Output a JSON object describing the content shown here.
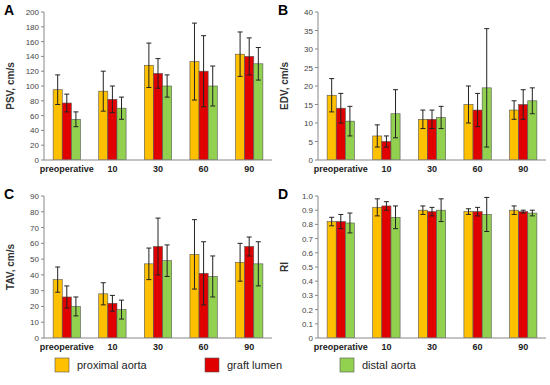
{
  "chart_data": [
    {
      "type": "bar",
      "title": "A",
      "y_label": "PSV, cm/s",
      "categories": [
        "preoperative",
        "10",
        "30",
        "60",
        "90"
      ],
      "series": [
        {
          "name": "proximal aorta",
          "color": "#ffc000",
          "values": [
            95,
            93,
            128,
            133,
            143
          ],
          "errors": [
            20,
            27,
            30,
            52,
            30
          ]
        },
        {
          "name": "graft lumen",
          "color": "#e00000",
          "values": [
            77,
            82,
            117,
            120,
            140
          ],
          "errors": [
            12,
            18,
            20,
            48,
            25
          ]
        },
        {
          "name": "distal aorta",
          "color": "#92d050",
          "values": [
            55,
            70,
            100,
            100,
            130
          ],
          "errors": [
            10,
            15,
            15,
            27,
            22
          ]
        }
      ],
      "ylim": [
        0,
        200
      ],
      "yticks": [
        0,
        20,
        40,
        60,
        80,
        100,
        120,
        140,
        160,
        180,
        200
      ],
      "grid": false,
      "legend": "bottom"
    },
    {
      "type": "bar",
      "title": "B",
      "y_label": "EDV, cm/s",
      "categories": [
        "preoperative",
        "10",
        "30",
        "60",
        "90"
      ],
      "series": [
        {
          "name": "proximal aorta",
          "color": "#ffc000",
          "values": [
            17.5,
            6.5,
            11,
            15,
            13.5
          ],
          "errors": [
            4.5,
            3,
            2.5,
            5,
            2.5
          ]
        },
        {
          "name": "graft lumen",
          "color": "#e00000",
          "values": [
            14,
            5,
            11,
            13.5,
            15
          ],
          "errors": [
            4,
            1.5,
            2.5,
            4.5,
            4
          ]
        },
        {
          "name": "distal aorta",
          "color": "#92d050",
          "values": [
            10.5,
            12.5,
            11.5,
            19.5,
            16
          ],
          "errors": [
            4,
            6.5,
            3,
            16,
            3.5
          ]
        }
      ],
      "ylim": [
        0,
        40
      ],
      "yticks": [
        0,
        5,
        10,
        15,
        20,
        25,
        30,
        35,
        40
      ],
      "grid": false,
      "legend": "bottom"
    },
    {
      "type": "bar",
      "title": "C",
      "y_label": "TAV, cm/s",
      "categories": [
        "preoperative",
        "10",
        "30",
        "60",
        "90"
      ],
      "series": [
        {
          "name": "proximal aorta",
          "color": "#ffc000",
          "values": [
            37,
            28,
            47,
            53,
            48
          ],
          "errors": [
            8,
            7,
            10,
            22,
            12
          ]
        },
        {
          "name": "graft lumen",
          "color": "#e00000",
          "values": [
            26,
            22,
            58,
            41,
            58
          ],
          "errors": [
            7,
            5,
            18,
            20,
            6
          ]
        },
        {
          "name": "distal aorta",
          "color": "#92d050",
          "values": [
            20,
            18,
            49,
            39,
            47
          ],
          "errors": [
            6,
            6,
            10,
            13,
            14
          ]
        }
      ],
      "ylim": [
        0,
        90
      ],
      "yticks": [
        0,
        10,
        20,
        30,
        40,
        50,
        60,
        70,
        80,
        90
      ],
      "grid": false,
      "legend": "bottom"
    },
    {
      "type": "bar",
      "title": "D",
      "y_label": "RI",
      "categories": [
        "preoperative",
        "10",
        "30",
        "60",
        "90"
      ],
      "series": [
        {
          "name": "proximal aorta",
          "color": "#ffc000",
          "values": [
            0.82,
            0.92,
            0.9,
            0.89,
            0.9
          ],
          "errors": [
            0.03,
            0.06,
            0.03,
            0.02,
            0.03
          ]
        },
        {
          "name": "graft lumen",
          "color": "#e00000",
          "values": [
            0.82,
            0.93,
            0.89,
            0.89,
            0.89
          ],
          "errors": [
            0.05,
            0.03,
            0.03,
            0.03,
            0.01
          ]
        },
        {
          "name": "distal aorta",
          "color": "#92d050",
          "values": [
            0.81,
            0.85,
            0.9,
            0.87,
            0.88
          ],
          "errors": [
            0.07,
            0.08,
            0.08,
            0.12,
            0.02
          ]
        }
      ],
      "ylim": [
        0,
        1
      ],
      "yticks": [
        0,
        0.1,
        0.2,
        0.3,
        0.4,
        0.5,
        0.6,
        0.7,
        0.8,
        0.9,
        {
          "value": 1,
          "label": "1.0"
        }
      ],
      "grid": false,
      "legend": "bottom"
    }
  ]
}
